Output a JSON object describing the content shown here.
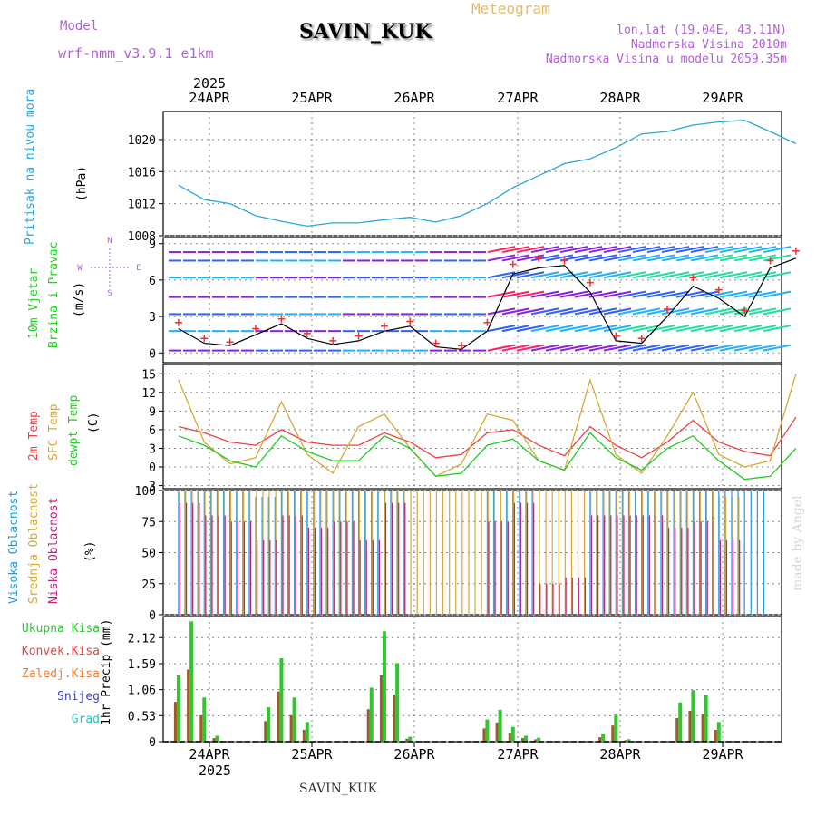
{
  "header": {
    "model_label": "Model",
    "model_name": "wrf-nmm_v3.9.1  e1km",
    "station": "SAVIN_KUK",
    "title": "Meteogram",
    "coords": "lon,lat (19.04E, 43.11N)",
    "altitude": "Nadmorska Visina 2010m",
    "model_altitude": "Nadmorska Visina u modelu 2059.35m",
    "watermark": "made by Angel",
    "footer_station": "SAVIN_KUK"
  },
  "time_axis": {
    "year": "2025",
    "days": [
      "24APR",
      "25APR",
      "26APR",
      "27APR",
      "28APR",
      "29APR"
    ]
  },
  "colors": {
    "pressure": "#29a8e0",
    "temp2m": "#f04040",
    "sfc_temp": "#d8a838",
    "dewpt": "#22cc22",
    "high_cloud": "#1e9be0",
    "mid_cloud": "#d8a838",
    "low_cloud": "#c0207a",
    "total_precip": "#2ec82e",
    "conv_precip": "#a05a2a",
    "wind_speed": "#000000",
    "gust": "#ff2a2a"
  },
  "chart_data": [
    {
      "type": "line",
      "name": "pressure",
      "ylabel_main": "Pritisak na nivou mora",
      "ylabel_unit": "(hPa)",
      "yticks": [
        1008,
        1012,
        1016,
        1020
      ],
      "ylim": [
        1008,
        1023.5
      ],
      "x_hours": [
        0,
        6,
        12,
        18,
        24,
        30,
        36,
        42,
        48,
        54,
        60,
        66,
        72,
        78,
        84,
        90,
        96,
        102,
        108,
        114,
        120,
        126,
        132,
        138,
        144
      ],
      "values": [
        1014.3,
        1012.5,
        1012.0,
        1010.5,
        1009.8,
        1009.2,
        1009.6,
        1009.6,
        1010.0,
        1010.3,
        1009.7,
        1010.5,
        1012.0,
        1014.0,
        1015.5,
        1017.0,
        1017.6,
        1019.0,
        1020.7,
        1021.0,
        1021.8,
        1022.2,
        1022.4,
        1021.0,
        1019.5
      ]
    },
    {
      "type": "line",
      "name": "wind",
      "ylabel_main": "10m Vjetar",
      "ylabel_sub": "Brzina i Pravac",
      "ylabel_unit": "(m/s)",
      "yticks": [
        0,
        3,
        6,
        9
      ],
      "ylim": [
        -0.8,
        9.5
      ],
      "compass": [
        "N",
        "W",
        "E",
        "S"
      ],
      "x_hours": [
        0,
        6,
        12,
        18,
        24,
        30,
        36,
        42,
        48,
        54,
        60,
        66,
        72,
        78,
        84,
        90,
        96,
        102,
        108,
        114,
        120,
        126,
        132,
        138,
        144
      ],
      "speed": [
        2.0,
        0.8,
        0.6,
        1.5,
        2.4,
        1.2,
        0.7,
        1.0,
        1.8,
        2.2,
        0.5,
        0.3,
        1.8,
        6.5,
        7.0,
        7.2,
        5.0,
        1.0,
        0.8,
        3.0,
        5.5,
        4.5,
        3.0,
        7.0,
        7.8
      ],
      "gust": [
        2.5,
        1.2,
        0.9,
        2.0,
        2.8,
        1.6,
        1.0,
        1.4,
        2.2,
        2.6,
        0.8,
        0.6,
        2.5,
        7.3,
        7.8,
        7.6,
        5.8,
        1.4,
        1.2,
        3.6,
        6.2,
        5.2,
        3.5,
        7.6,
        8.4
      ]
    },
    {
      "type": "line",
      "name": "temperature",
      "legend": [
        "2m Temp",
        "SFC Temp",
        "dewpt Temp"
      ],
      "ylabel_unit": "(C)",
      "yticks": [
        -3,
        0,
        3,
        6,
        9,
        12,
        15
      ],
      "ylim": [
        -3.5,
        16.5
      ],
      "x_hours": [
        0,
        6,
        12,
        18,
        24,
        30,
        36,
        42,
        48,
        54,
        60,
        66,
        72,
        78,
        84,
        90,
        96,
        102,
        108,
        114,
        120,
        126,
        132,
        138,
        144
      ],
      "series": [
        {
          "name": "2m Temp",
          "values": [
            6.5,
            5.5,
            4.0,
            3.5,
            6.0,
            4.0,
            3.5,
            3.5,
            5.5,
            4.0,
            1.5,
            2.0,
            5.5,
            6.0,
            3.5,
            1.8,
            6.5,
            3.5,
            1.5,
            4.0,
            7.5,
            4.0,
            2.5,
            1.8,
            8.0
          ]
        },
        {
          "name": "SFC Temp",
          "values": [
            14.0,
            4.0,
            0.5,
            1.5,
            10.5,
            2.0,
            -1.0,
            6.5,
            8.5,
            3.0,
            -1.5,
            0.5,
            8.5,
            7.5,
            1.0,
            -0.5,
            14.0,
            2.0,
            -1.0,
            5.0,
            12.0,
            2.0,
            0.0,
            1.0,
            15.0
          ]
        },
        {
          "name": "dewpt Temp",
          "values": [
            5.0,
            3.5,
            1.0,
            0.0,
            5.0,
            2.5,
            1.0,
            1.0,
            5.0,
            3.0,
            -1.5,
            -1.0,
            3.5,
            4.5,
            1.0,
            -0.5,
            5.5,
            1.5,
            -0.5,
            3.0,
            5.0,
            1.0,
            -2.0,
            -1.5,
            3.0
          ]
        }
      ]
    },
    {
      "type": "bar",
      "name": "clouds",
      "legend": [
        "Visoka Oblacnost",
        "Srednja Oblacnost",
        "Niska Oblacnost"
      ],
      "ylabel_unit": "(%)",
      "yticks": [
        0,
        25,
        50,
        75,
        100
      ],
      "ylim": [
        0,
        100
      ],
      "x_hours": [
        0,
        6,
        12,
        18,
        24,
        30,
        36,
        42,
        48,
        54,
        60,
        66,
        72,
        78,
        84,
        90,
        96,
        102,
        108,
        114,
        120,
        126,
        132,
        138,
        144
      ],
      "series": [
        {
          "name": "Visoka Oblacnost",
          "values": [
            100,
            100,
            100,
            95,
            100,
            100,
            100,
            100,
            100,
            0,
            0,
            0,
            100,
            100,
            0,
            0,
            100,
            100,
            100,
            100,
            100,
            100,
            100,
            0,
            0
          ]
        },
        {
          "name": "Srednja Oblacnost",
          "values": [
            100,
            100,
            100,
            100,
            100,
            100,
            100,
            100,
            100,
            100,
            100,
            100,
            100,
            100,
            100,
            100,
            100,
            100,
            100,
            100,
            100,
            95,
            0,
            0,
            0
          ]
        },
        {
          "name": "Niska Oblacnost",
          "values": [
            90,
            80,
            75,
            60,
            80,
            70,
            75,
            60,
            90,
            0,
            0,
            0,
            75,
            90,
            25,
            30,
            80,
            80,
            80,
            70,
            75,
            60,
            0,
            0,
            25
          ]
        }
      ]
    },
    {
      "type": "bar",
      "name": "precipitation",
      "legend": [
        "Ukupna Kisa",
        "Konvek.Kisa",
        "Zaledj.Kisa",
        "Snijeg",
        "Grad"
      ],
      "legend_colors": [
        "#2ec82e",
        "#f04040",
        "#f08030",
        "#4040e0",
        "#30c0c0"
      ],
      "ylabel_unit": "1hr Precip (mm)",
      "yticks": [
        0,
        0.53,
        1.06,
        1.59,
        2.12
      ],
      "ylim": [
        0,
        2.55
      ],
      "x_hours": [
        0,
        3,
        6,
        9,
        12,
        15,
        18,
        21,
        24,
        27,
        30,
        33,
        36,
        39,
        42,
        45,
        48,
        51,
        54,
        57,
        60,
        63,
        66,
        69,
        72,
        75,
        78,
        81,
        84,
        87,
        90,
        93,
        96,
        99,
        102,
        105,
        108,
        111,
        114,
        117,
        120,
        123,
        126,
        129,
        132,
        135,
        138,
        141,
        144
      ],
      "values": [
        1.35,
        2.45,
        0.9,
        0.12,
        0,
        0,
        0,
        0.7,
        1.7,
        0.9,
        0.4,
        0,
        0,
        0,
        0,
        1.1,
        2.25,
        1.6,
        0.1,
        0,
        0,
        0,
        0,
        0,
        0.45,
        0.65,
        0.3,
        0.12,
        0.08,
        0,
        0,
        0,
        0,
        0.15,
        0.55,
        0.05,
        0,
        0,
        0,
        0.8,
        1.05,
        0.95,
        0.4,
        0,
        0,
        0,
        0,
        0,
        0
      ]
    }
  ]
}
